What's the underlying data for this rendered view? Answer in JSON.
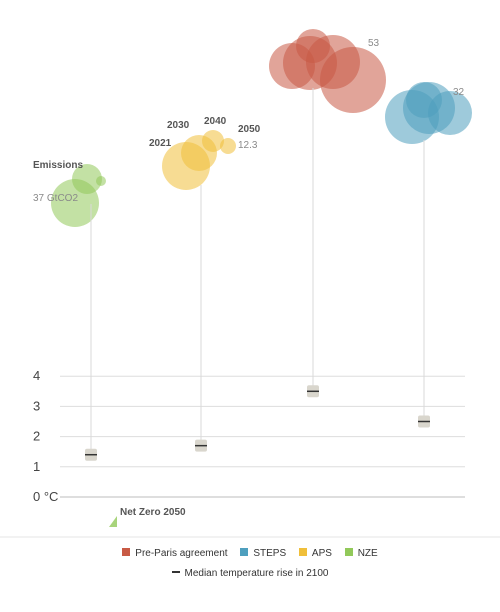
{
  "chart_data": {
    "type": "scatter",
    "title": "",
    "xlabel": "",
    "ylabel": "",
    "ylim": [
      0,
      4
    ],
    "y_ticks": [
      {
        "value": 4,
        "label": "4"
      },
      {
        "value": 3,
        "label": "3"
      },
      {
        "value": 2,
        "label": "2"
      },
      {
        "value": 1,
        "label": "1"
      },
      {
        "value": 0,
        "label": "0 °C"
      }
    ],
    "grid": true,
    "series": [
      {
        "name": "Pre-Paris agreement",
        "color": "#c85a45",
        "median_temperature_2100": 3.5,
        "emissions_label": "53"
      },
      {
        "name": "STEPS",
        "color": "#4e9fbe",
        "median_temperature_2100": 2.5,
        "emissions_label": "32"
      },
      {
        "name": "APS",
        "color": "#f0bf3a",
        "median_temperature_2100": 1.7,
        "emissions_label": "12.3",
        "year_labels": [
          "2021",
          "2030",
          "2040",
          "2050"
        ]
      },
      {
        "name": "NZE",
        "color": "#92c95a",
        "median_temperature_2100": 1.4,
        "emissions_label": "37 GtCO2"
      }
    ],
    "annotations": {
      "emissions": "Emissions",
      "net_zero": "Net Zero 2050"
    },
    "legend": {
      "position": "bottom",
      "median_label": "Median temperature rise in 2100"
    }
  }
}
